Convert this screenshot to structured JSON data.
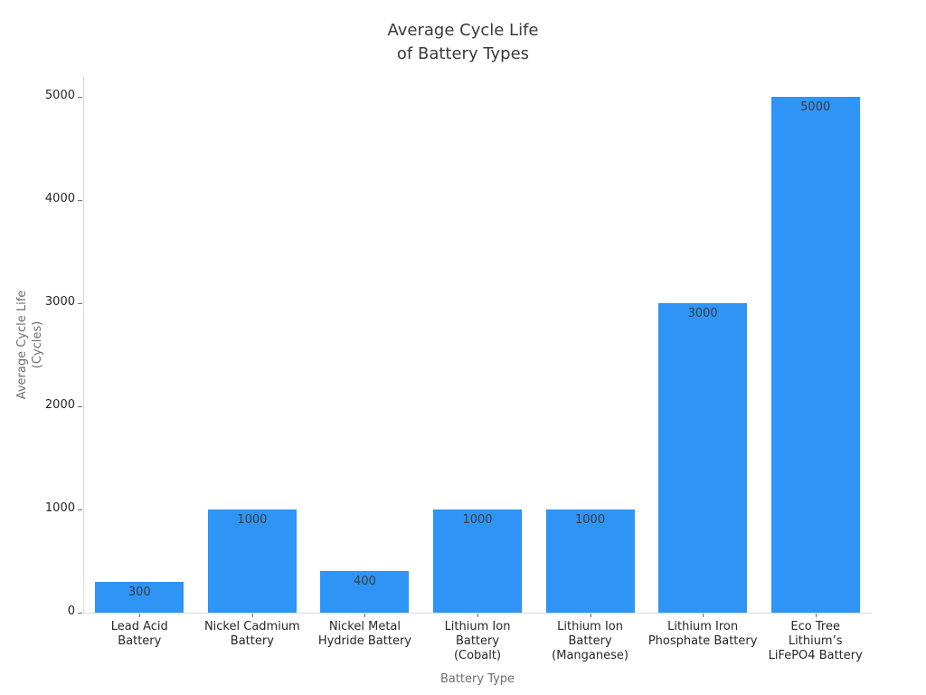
{
  "chart_data": {
    "type": "bar",
    "title": "Average Cycle Life\nof Battery Types",
    "xlabel": "Battery Type",
    "ylabel": "Average Cycle Life\n(Cycles)",
    "categories": [
      "Lead Acid\nBattery",
      "Nickel Cadmium\nBattery",
      "Nickel Metal\nHydride Battery",
      "Lithium Ion\nBattery\n(Cobalt)",
      "Lithium Ion\nBattery\n(Manganese)",
      "Lithium Iron\nPhosphate Battery",
      "Eco Tree\nLithium’s\nLiFePO4 Battery"
    ],
    "values": [
      300,
      1000,
      400,
      1000,
      1000,
      3000,
      5000
    ],
    "bar_value_labels": [
      "300",
      "1000",
      "400",
      "1000",
      "1000",
      "3000",
      "5000"
    ],
    "yticks": [
      0,
      1000,
      2000,
      3000,
      4000,
      5000
    ],
    "ytick_labels": [
      "0",
      "1000",
      "2000",
      "3000",
      "4000",
      "5000"
    ],
    "ylim": [
      0,
      5000
    ],
    "grid": false,
    "legend": "none",
    "bar_color": "#2e94f5",
    "colors": {
      "bar": "#2e94f5",
      "title_text": "#3a3a3a",
      "tick_text": "#262626",
      "axis_label_text": "#6e6e6e",
      "value_label_text": "#3d3d3d",
      "spine": "#d9d9d9",
      "background": "#ffffff"
    }
  }
}
